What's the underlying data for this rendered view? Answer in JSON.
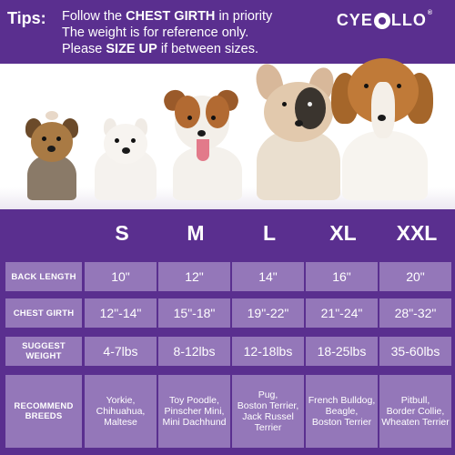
{
  "banner": {
    "tips_label": "Tips:",
    "line1_pre": "Follow the",
    "line1_bold": "CHEST GIRTH",
    "line1_post": "in priority",
    "line2": "The weight is for reference only.",
    "line3_pre": "Please",
    "line3_bold": "SIZE UP",
    "line3_post": "if between sizes.",
    "brand_pre": "CYE",
    "brand_post": "LLO",
    "brand_reg": "®"
  },
  "photo": {
    "dogs": [
      "yorkie-dog",
      "pomeranian-dog",
      "jack-russell-dog",
      "french-bulldog-dog",
      "beagle-dog"
    ]
  },
  "table": {
    "sizes": [
      "S",
      "M",
      "L",
      "XL",
      "XXL"
    ],
    "rows": [
      {
        "label": "BACK  LENGTH",
        "values": [
          "10\"",
          "12\"",
          "14\"",
          "16\"",
          "20\""
        ]
      },
      {
        "label": "CHEST GIRTH",
        "values": [
          "12\"-14\"",
          "15\"-18\"",
          "19\"-22\"",
          "21\"-24\"",
          "28\"-32\""
        ]
      },
      {
        "label": "SUGGEST WEIGHT",
        "values": [
          "4-7lbs",
          "8-12lbs",
          "12-18lbs",
          "18-25lbs",
          "35-60lbs"
        ]
      },
      {
        "label": "RECOMMEND BREEDS",
        "values": [
          "Yorkie,\nChihuahua,\nMaltese",
          "Toy Poodle,\nPinscher Mini,\nMini Dachhund",
          "Pug,\nBoston Terrier,\nJack Russel\nTerrier",
          "French Bulldog,\nBeagle,\nBoston Terrier",
          "Pitbull,\nBorder Collie,\nWheaten Terrier"
        ]
      }
    ]
  },
  "colors": {
    "purple": "#5a2f8f",
    "cell": "#9477b9",
    "text": "#ffffff"
  }
}
